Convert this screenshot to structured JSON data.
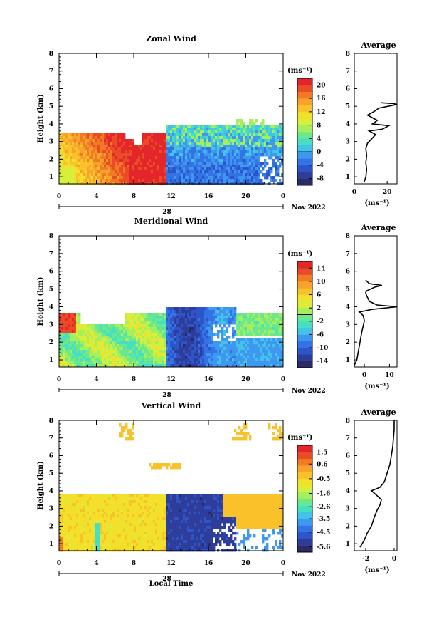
{
  "figure": {
    "xlabel": "Local Time",
    "date_label": "Nov 2022",
    "day_label": "28",
    "average_title": "Average",
    "unit_label": "(ms⁻¹)",
    "ylabel": "Height (km)"
  },
  "chart_data": [
    {
      "type": "heatmap",
      "title": "Zonal Wind",
      "ylabel": "Height (km)",
      "x_ticks": [
        "0",
        "4",
        "8",
        "12",
        "16",
        "20",
        "0"
      ],
      "y_ticks": [
        "1",
        "2",
        "3",
        "4",
        "5",
        "6",
        "7",
        "8"
      ],
      "xlim": [
        0,
        24
      ],
      "ylim": [
        0.6,
        8
      ],
      "colorbar": {
        "unit": "(ms⁻¹)",
        "ticks": [
          "20",
          "16",
          "12",
          "8",
          "4",
          "0",
          "-4",
          "-8"
        ],
        "range": [
          -10,
          22
        ]
      },
      "regions": [
        {
          "t": [
            0,
            11.5
          ],
          "h": [
            0.7,
            3.5
          ],
          "value": "westerly (positive), 8 to 22"
        },
        {
          "t": [
            11.5,
            24
          ],
          "h": [
            0.7,
            4.0
          ],
          "value": "easterly (negative), -2 to -10"
        }
      ],
      "profile": {
        "title": "Average",
        "xlabel": "(ms⁻¹)",
        "x_ticks": [
          "0",
          "20"
        ],
        "y_ticks": [
          "1",
          "2",
          "3",
          "4",
          "5",
          "6",
          "7",
          "8"
        ],
        "xlim": [
          0,
          26
        ],
        "ylim": [
          0.6,
          8
        ],
        "points": [
          [
            6,
            0.7
          ],
          [
            7,
            1.0
          ],
          [
            7.5,
            1.4
          ],
          [
            7,
            1.8
          ],
          [
            7.5,
            2.2
          ],
          [
            7,
            2.6
          ],
          [
            8,
            2.9
          ],
          [
            10,
            3.1
          ],
          [
            13,
            3.4
          ],
          [
            9,
            3.6
          ],
          [
            17,
            3.7
          ],
          [
            21,
            3.9
          ],
          [
            11,
            4.0
          ],
          [
            14,
            4.2
          ],
          [
            10,
            4.4
          ],
          [
            8,
            4.5
          ],
          [
            12,
            4.7
          ],
          [
            15,
            4.9
          ],
          [
            26,
            5.1
          ],
          [
            24,
            5.15
          ],
          [
            16,
            5.2
          ]
        ]
      }
    },
    {
      "type": "heatmap",
      "title": "Meridional Wind",
      "ylabel": "Height (km)",
      "x_ticks": [
        "0",
        "4",
        "8",
        "12",
        "16",
        "20",
        "0"
      ],
      "y_ticks": [
        "1",
        "2",
        "3",
        "4",
        "5",
        "6",
        "7",
        "8"
      ],
      "xlim": [
        0,
        24
      ],
      "ylim": [
        0.6,
        8
      ],
      "colorbar": {
        "unit": "(ms⁻¹)",
        "ticks": [
          "14",
          "10",
          "6",
          "2",
          "-2",
          "-6",
          "-10",
          "-14"
        ],
        "range": [
          -16,
          16
        ]
      },
      "regions": [
        {
          "t": [
            0,
            8
          ],
          "h": [
            0.7,
            3.5
          ],
          "value": "mostly weak northward, 0 to 8"
        },
        {
          "t": [
            11.5,
            19
          ],
          "h": [
            0.7,
            3.8
          ],
          "value": "southward, -6 to -16"
        },
        {
          "t": [
            17.5,
            24
          ],
          "h": [
            2.5,
            3.6
          ],
          "value": "near zero, -2 to 2"
        }
      ],
      "profile": {
        "title": "Average",
        "xlabel": "(ms⁻¹)",
        "x_ticks": [
          "0",
          "10"
        ],
        "y_ticks": [
          "1",
          "2",
          "3",
          "4",
          "5",
          "6",
          "7",
          "8"
        ],
        "xlim": [
          -4,
          13
        ],
        "ylim": [
          0.6,
          8
        ],
        "points": [
          [
            -4,
            0.7
          ],
          [
            -3,
            1.0
          ],
          [
            -2.5,
            1.4
          ],
          [
            -2,
            1.8
          ],
          [
            -1.5,
            2.2
          ],
          [
            -1,
            2.6
          ],
          [
            -0.5,
            2.9
          ],
          [
            0,
            3.2
          ],
          [
            -0.5,
            3.5
          ],
          [
            -2,
            3.7
          ],
          [
            3,
            3.85
          ],
          [
            13,
            4.0
          ],
          [
            5,
            4.1
          ],
          [
            2,
            4.3
          ],
          [
            1,
            4.6
          ],
          [
            0.5,
            4.8
          ],
          [
            1,
            4.9
          ],
          [
            4,
            5.1
          ],
          [
            7,
            5.2
          ],
          [
            2,
            5.3
          ],
          [
            0.5,
            5.5
          ]
        ]
      }
    },
    {
      "type": "heatmap",
      "title": "Vertical Wind",
      "ylabel": "Height (km)",
      "x_ticks": [
        "0",
        "4",
        "8",
        "12",
        "16",
        "20",
        "0"
      ],
      "y_ticks": [
        "1",
        "2",
        "3",
        "4",
        "5",
        "6",
        "7",
        "8"
      ],
      "xlim": [
        0,
        24
      ],
      "ylim": [
        0.6,
        8
      ],
      "colorbar": {
        "unit": "(ms⁻¹)",
        "ticks": [
          "1.5",
          "0.6",
          "-0.5",
          "-1.6",
          "-2.6",
          "-3.5",
          "-4.5",
          "-5.6"
        ],
        "range": [
          -6,
          2
        ]
      },
      "regions": [
        {
          "t": [
            0,
            11.5
          ],
          "h": [
            0.7,
            3.8
          ],
          "value": "weak, -0.5 to 0.3"
        },
        {
          "t": [
            11.5,
            19.5
          ],
          "h": [
            0.7,
            3.8
          ],
          "value": "strong downward, -4 to -6"
        },
        {
          "t": [
            17.5,
            23
          ],
          "h": [
            2.0,
            3.7
          ],
          "value": "weak, about 0"
        }
      ],
      "profile": {
        "title": "Average",
        "xlabel": "(ms⁻¹)",
        "x_ticks": [
          "-2",
          "0"
        ],
        "y_ticks": [
          "1",
          "2",
          "3",
          "4",
          "5",
          "6",
          "7",
          "8"
        ],
        "xlim": [
          -2.8,
          0.2
        ],
        "ylim": [
          0.6,
          8
        ],
        "points": [
          [
            -2.4,
            0.8
          ],
          [
            -2.1,
            1.2
          ],
          [
            -1.9,
            1.6
          ],
          [
            -1.6,
            2.0
          ],
          [
            -1.4,
            2.5
          ],
          [
            -1.2,
            2.9
          ],
          [
            -1.0,
            3.2
          ],
          [
            -0.9,
            3.5
          ],
          [
            -1.3,
            3.8
          ],
          [
            -1.6,
            4.0
          ],
          [
            -1.0,
            4.2
          ],
          [
            -0.7,
            4.5
          ],
          [
            -0.5,
            5.0
          ],
          [
            -0.3,
            5.5
          ],
          [
            -0.2,
            6.0
          ],
          [
            -0.1,
            6.5
          ],
          [
            -0.05,
            7.0
          ],
          [
            0,
            7.5
          ],
          [
            0,
            8.0
          ]
        ]
      }
    }
  ]
}
